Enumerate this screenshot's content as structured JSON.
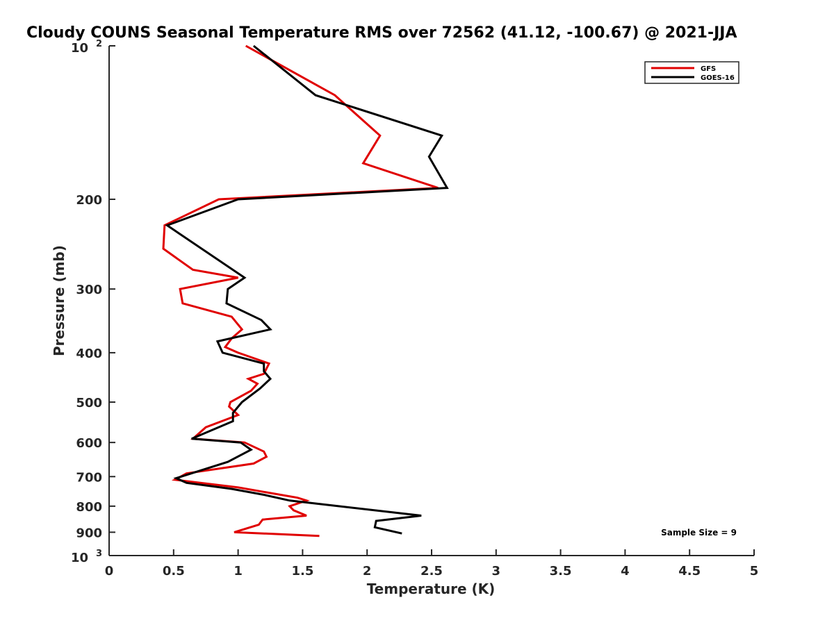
{
  "chart_data": {
    "type": "line",
    "title": "Cloudy COUNS Seasonal Temperature RMS over 72562 (41.12, -100.67) @ 2021-JJA",
    "xlabel": "Temperature (K)",
    "ylabel": "Pressure (mb)",
    "xlim": [
      0,
      5
    ],
    "ylim": [
      100,
      1000
    ],
    "y_scale": "log",
    "y_reversed": true,
    "grid": false,
    "legend_position": "top-right",
    "x_ticks": [
      "0",
      "0.5",
      "1",
      "1.5",
      "2",
      "2.5",
      "3",
      "3.5",
      "4",
      "4.5",
      "5"
    ],
    "y_ticks": [
      {
        "value": 100,
        "label": "10",
        "sup": "2"
      },
      {
        "value": 200,
        "label": "200"
      },
      {
        "value": 300,
        "label": "300"
      },
      {
        "value": 400,
        "label": "400"
      },
      {
        "value": 500,
        "label": "500"
      },
      {
        "value": 600,
        "label": "600"
      },
      {
        "value": 700,
        "label": "700"
      },
      {
        "value": 800,
        "label": "800"
      },
      {
        "value": 900,
        "label": "900"
      },
      {
        "value": 1000,
        "label": "10",
        "sup": "3"
      }
    ],
    "series": [
      {
        "name": "GFS",
        "color": "#e00000",
        "points": [
          [
            1.06,
            100
          ],
          [
            1.75,
            125
          ],
          [
            2.1,
            150
          ],
          [
            1.97,
            170
          ],
          [
            2.55,
            190
          ],
          [
            0.85,
            200
          ],
          [
            0.43,
            225
          ],
          [
            0.42,
            250
          ],
          [
            0.65,
            275
          ],
          [
            1.0,
            285
          ],
          [
            0.55,
            300
          ],
          [
            0.57,
            320
          ],
          [
            0.95,
            340
          ],
          [
            1.03,
            360
          ],
          [
            0.95,
            375
          ],
          [
            0.9,
            390
          ],
          [
            1.0,
            400
          ],
          [
            1.24,
            420
          ],
          [
            1.2,
            440
          ],
          [
            1.08,
            450
          ],
          [
            1.15,
            460
          ],
          [
            1.1,
            475
          ],
          [
            0.94,
            500
          ],
          [
            0.93,
            510
          ],
          [
            1.0,
            530
          ],
          [
            0.75,
            560
          ],
          [
            0.65,
            590
          ],
          [
            1.05,
            600
          ],
          [
            1.2,
            625
          ],
          [
            1.22,
            640
          ],
          [
            1.12,
            660
          ],
          [
            0.6,
            690
          ],
          [
            0.51,
            710
          ],
          [
            1.0,
            735
          ],
          [
            1.46,
            770
          ],
          [
            1.53,
            780
          ],
          [
            1.4,
            800
          ],
          [
            1.43,
            815
          ],
          [
            1.53,
            835
          ],
          [
            1.19,
            850
          ],
          [
            1.16,
            870
          ],
          [
            0.97,
            900
          ],
          [
            1.63,
            915
          ]
        ]
      },
      {
        "name": "GOES-16",
        "color": "#000000",
        "points": [
          [
            1.12,
            100
          ],
          [
            1.6,
            125
          ],
          [
            2.58,
            150
          ],
          [
            2.48,
            165
          ],
          [
            2.62,
            190
          ],
          [
            1.0,
            200
          ],
          [
            0.45,
            225
          ],
          [
            1.05,
            285
          ],
          [
            0.92,
            300
          ],
          [
            0.91,
            320
          ],
          [
            1.18,
            345
          ],
          [
            1.25,
            360
          ],
          [
            0.84,
            380
          ],
          [
            0.88,
            400
          ],
          [
            1.2,
            420
          ],
          [
            1.2,
            435
          ],
          [
            1.25,
            450
          ],
          [
            1.17,
            470
          ],
          [
            1.03,
            500
          ],
          [
            0.96,
            525
          ],
          [
            0.96,
            545
          ],
          [
            0.64,
            590
          ],
          [
            1.02,
            600
          ],
          [
            1.1,
            620
          ],
          [
            0.92,
            655
          ],
          [
            0.52,
            705
          ],
          [
            0.6,
            720
          ],
          [
            0.95,
            740
          ],
          [
            1.2,
            760
          ],
          [
            1.4,
            780
          ],
          [
            2.42,
            835
          ],
          [
            2.07,
            855
          ],
          [
            2.06,
            880
          ],
          [
            2.27,
            905
          ]
        ]
      }
    ],
    "annotation": "Sample Size = 9"
  }
}
